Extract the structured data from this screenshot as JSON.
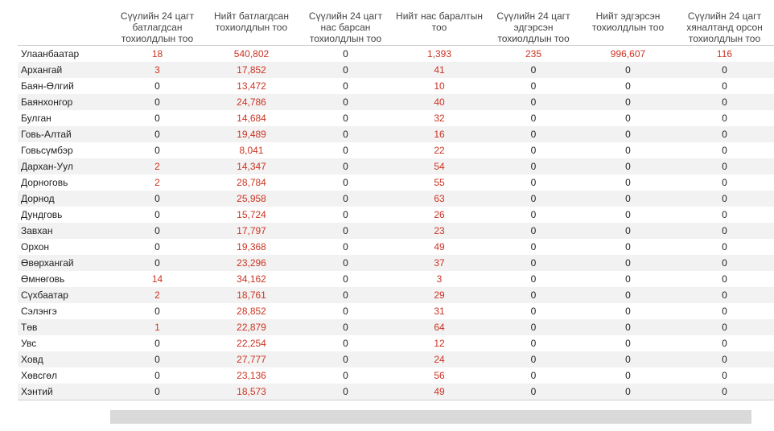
{
  "table": {
    "headers": [
      "",
      "Сүүлийн 24 цагт батлагдсан тохиолдлын тоо",
      "Нийт батлагдсан тохиолдлын тоо",
      "Сүүлийн 24 цагт нас барсан тохиолдлын тоо",
      "Нийт нас баралтын тоо",
      "Сүүлийн 24 цагт эдгэрсэн тохиолдлын тоо",
      "Нийт эдгэрсэн тохиолдлын тоо",
      "Сүүлийн 24 цагт хяналтанд орсон тохиолдлын тоо"
    ],
    "rows": [
      [
        "Улаанбаатар",
        "18",
        "540,802",
        "0",
        "1,393",
        "235",
        "996,607",
        "116"
      ],
      [
        "Архангай",
        "3",
        "17,852",
        "0",
        "41",
        "0",
        "0",
        "0"
      ],
      [
        "Баян-Өлгий",
        "0",
        "13,472",
        "0",
        "10",
        "0",
        "0",
        "0"
      ],
      [
        "Баянхонгор",
        "0",
        "24,786",
        "0",
        "40",
        "0",
        "0",
        "0"
      ],
      [
        "Булган",
        "0",
        "14,684",
        "0",
        "32",
        "0",
        "0",
        "0"
      ],
      [
        "Говь-Алтай",
        "0",
        "19,489",
        "0",
        "16",
        "0",
        "0",
        "0"
      ],
      [
        "Говьсүмбэр",
        "0",
        "8,041",
        "0",
        "22",
        "0",
        "0",
        "0"
      ],
      [
        "Дархан-Уул",
        "2",
        "14,347",
        "0",
        "54",
        "0",
        "0",
        "0"
      ],
      [
        "Дорноговь",
        "2",
        "28,784",
        "0",
        "55",
        "0",
        "0",
        "0"
      ],
      [
        "Дорнод",
        "0",
        "25,958",
        "0",
        "63",
        "0",
        "0",
        "0"
      ],
      [
        "Дундговь",
        "0",
        "15,724",
        "0",
        "26",
        "0",
        "0",
        "0"
      ],
      [
        "Завхан",
        "0",
        "17,797",
        "0",
        "23",
        "0",
        "0",
        "0"
      ],
      [
        "Орхон",
        "0",
        "19,368",
        "0",
        "49",
        "0",
        "0",
        "0"
      ],
      [
        "Өвөрхангай",
        "0",
        "23,296",
        "0",
        "37",
        "0",
        "0",
        "0"
      ],
      [
        "Өмнөговь",
        "14",
        "34,162",
        "0",
        "3",
        "0",
        "0",
        "0"
      ],
      [
        "Сүхбаатар",
        "2",
        "18,761",
        "0",
        "29",
        "0",
        "0",
        "0"
      ],
      [
        "Сэлэнгэ",
        "0",
        "28,852",
        "0",
        "31",
        "0",
        "0",
        "0"
      ],
      [
        "Төв",
        "1",
        "22,879",
        "0",
        "64",
        "0",
        "0",
        "0"
      ],
      [
        "Увс",
        "0",
        "22,254",
        "0",
        "12",
        "0",
        "0",
        "0"
      ],
      [
        "Ховд",
        "0",
        "27,777",
        "0",
        "24",
        "0",
        "0",
        "0"
      ],
      [
        "Хөвсгөл",
        "0",
        "23,136",
        "0",
        "56",
        "0",
        "0",
        "0"
      ],
      [
        "Хэнтий",
        "0",
        "18,573",
        "0",
        "49",
        "0",
        "0",
        "0"
      ]
    ]
  },
  "colors": {
    "highlight_value": "#cc3322",
    "normal_value": "#222222",
    "stripe_row": "#f2f2f2",
    "scrollbar": "#d9d9d9"
  }
}
